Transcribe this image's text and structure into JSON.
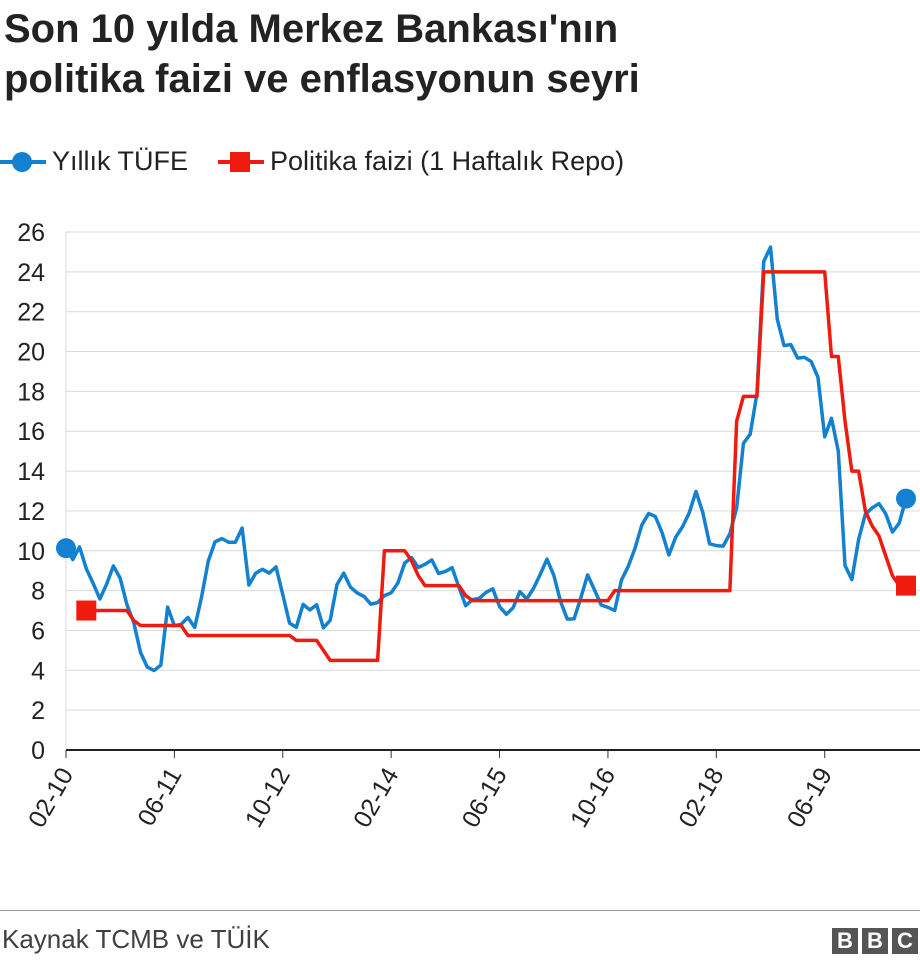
{
  "title_line1": "Son 10 yılda Merkez Bankası'nın",
  "title_line2": "politika faizi ve enflasyonun seyri",
  "source": "Kaynak TCMB ve TÜİK",
  "logo": "BBC",
  "chart_data": {
    "type": "line",
    "title": "Son 10 yılda Merkez Bankası'nın politika faizi ve enflasyonun seyri",
    "x_start": "02-2010",
    "x_ticks": [
      "02-10",
      "06-11",
      "10-12",
      "02-14",
      "06-15",
      "10-16",
      "02-18",
      "06-19"
    ],
    "y_ticks": [
      0,
      2,
      4,
      6,
      8,
      10,
      12,
      14,
      16,
      18,
      20,
      22,
      24,
      26
    ],
    "ylim": [
      0,
      26
    ],
    "legend_position": "top-left",
    "grid": "horizontal",
    "series": [
      {
        "name": "Yıllık TÜFE",
        "color": "#1380d0",
        "start_month_offset": 0,
        "values": [
          10.13,
          9.56,
          10.19,
          9.1,
          8.37,
          7.58,
          8.33,
          9.24,
          8.62,
          7.29,
          6.4,
          4.9,
          4.16,
          3.99,
          4.26,
          7.17,
          6.24,
          6.31,
          6.65,
          6.15,
          7.66,
          9.48,
          10.45,
          10.61,
          10.43,
          10.43,
          11.14,
          8.28,
          8.87,
          9.07,
          8.88,
          9.19,
          7.8,
          6.37,
          6.16,
          7.31,
          7.03,
          7.29,
          6.13,
          6.51,
          8.3,
          8.88,
          8.17,
          7.88,
          7.71,
          7.32,
          7.4,
          7.75,
          7.89,
          8.39,
          9.38,
          9.66,
          9.16,
          9.32,
          9.54,
          8.86,
          8.96,
          9.15,
          8.17,
          7.24,
          7.55,
          7.61,
          7.91,
          8.09,
          7.2,
          6.81,
          7.14,
          7.95,
          7.58,
          8.1,
          8.81,
          9.58,
          8.78,
          7.46,
          6.57,
          6.58,
          7.64,
          8.79,
          8.05,
          7.28,
          7.16,
          7.0,
          8.53,
          9.22,
          10.13,
          11.29,
          11.87,
          11.72,
          10.9,
          9.79,
          10.68,
          11.2,
          11.9,
          12.98,
          11.92,
          10.35,
          10.26,
          10.23,
          10.85,
          12.15,
          15.39,
          15.85,
          17.9,
          24.52,
          25.24,
          21.62,
          20.3,
          20.35,
          19.67,
          19.71,
          19.5,
          18.71,
          15.72,
          16.65,
          15.01,
          9.26,
          8.55,
          10.56,
          11.84,
          12.15,
          12.37,
          11.86,
          10.94,
          11.39,
          12.62
        ]
      },
      {
        "name": "Politika faizi (1 Haftalık Repo)",
        "color": "#ee1c0f",
        "start_month_offset": 3,
        "values": [
          7,
          7,
          7,
          7,
          7,
          7,
          7,
          6.5,
          6.25,
          6.25,
          6.25,
          6.25,
          6.25,
          6.25,
          6.25,
          5.75,
          5.75,
          5.75,
          5.75,
          5.75,
          5.75,
          5.75,
          5.75,
          5.75,
          5.75,
          5.75,
          5.75,
          5.75,
          5.75,
          5.75,
          5.75,
          5.5,
          5.5,
          5.5,
          5.5,
          5.0,
          4.5,
          4.5,
          4.5,
          4.5,
          4.5,
          4.5,
          4.5,
          4.5,
          10,
          10,
          10,
          10,
          9.5,
          8.75,
          8.25,
          8.25,
          8.25,
          8.25,
          8.25,
          8.25,
          7.75,
          7.5,
          7.5,
          7.5,
          7.5,
          7.5,
          7.5,
          7.5,
          7.5,
          7.5,
          7.5,
          7.5,
          7.5,
          7.5,
          7.5,
          7.5,
          7.5,
          7.5,
          7.5,
          7.5,
          7.5,
          7.5,
          8,
          8,
          8,
          8,
          8,
          8,
          8,
          8,
          8,
          8,
          8,
          8,
          8,
          8,
          8,
          8,
          8,
          8,
          16.5,
          17.75,
          17.75,
          17.75,
          24,
          24,
          24,
          24,
          24,
          24,
          24,
          24,
          24,
          24,
          19.75,
          19.75,
          16.5,
          14,
          14,
          12,
          11.25,
          10.75,
          9.75,
          8.75,
          8.25,
          8.25
        ]
      }
    ]
  }
}
